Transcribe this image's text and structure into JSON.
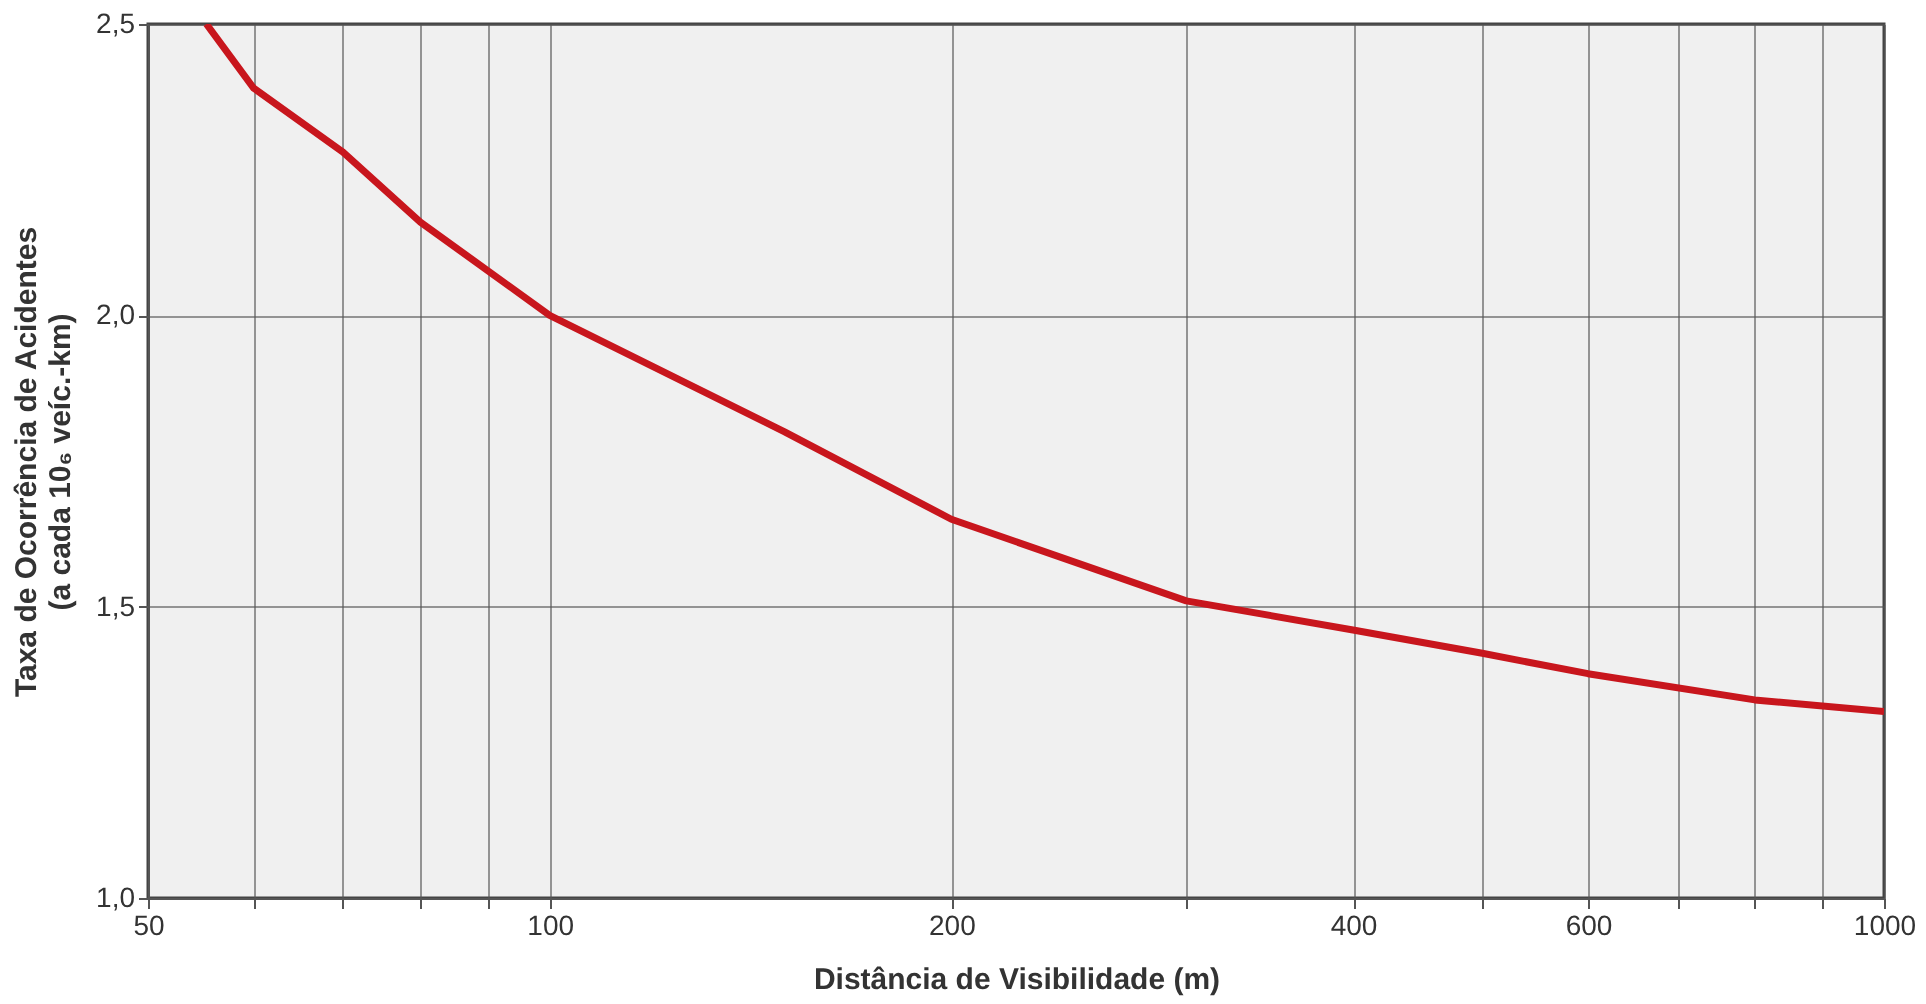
{
  "chart_data": {
    "type": "line",
    "xlabel": "Distância de Visibilidade (m)",
    "ylabel": "Taxa de Ocorrência de Acidentes\n(a cada 10₆ veíc.-km)",
    "series": [
      {
        "color": "#c8161d",
        "x": [
          55.3,
          60,
          70,
          80,
          100,
          150,
          200,
          300,
          400,
          500,
          600,
          800,
          1000
        ],
        "values": [
          2.5,
          2.39,
          2.28,
          2.16,
          2.0,
          1.8,
          1.65,
          1.51,
          1.46,
          1.42,
          1.385,
          1.34,
          1.32
        ]
      }
    ],
    "log": "x",
    "xlim": [
      50,
      1000
    ],
    "ylim": [
      1.0,
      2.5
    ],
    "xticks": [
      50,
      {
        "value": 60,
        "label": null
      },
      {
        "value": 70,
        "label": null
      },
      {
        "value": 80,
        "label": null
      },
      {
        "value": 90,
        "label": null
      },
      100,
      200,
      {
        "value": 300,
        "label": null
      },
      400,
      {
        "value": 500,
        "label": null
      },
      600,
      {
        "value": 700,
        "label": null
      },
      {
        "value": 800,
        "label": null
      },
      {
        "value": 900,
        "label": null
      },
      1000
    ],
    "yticks": [
      {
        "value": 1.0,
        "label": "1,0"
      },
      {
        "value": 1.5,
        "label": "1,5"
      },
      {
        "value": 2.0,
        "label": "2,0"
      },
      {
        "value": 2.5,
        "label": "2,5"
      }
    ],
    "grid": true,
    "marker": "none",
    "line_style": "solid"
  }
}
